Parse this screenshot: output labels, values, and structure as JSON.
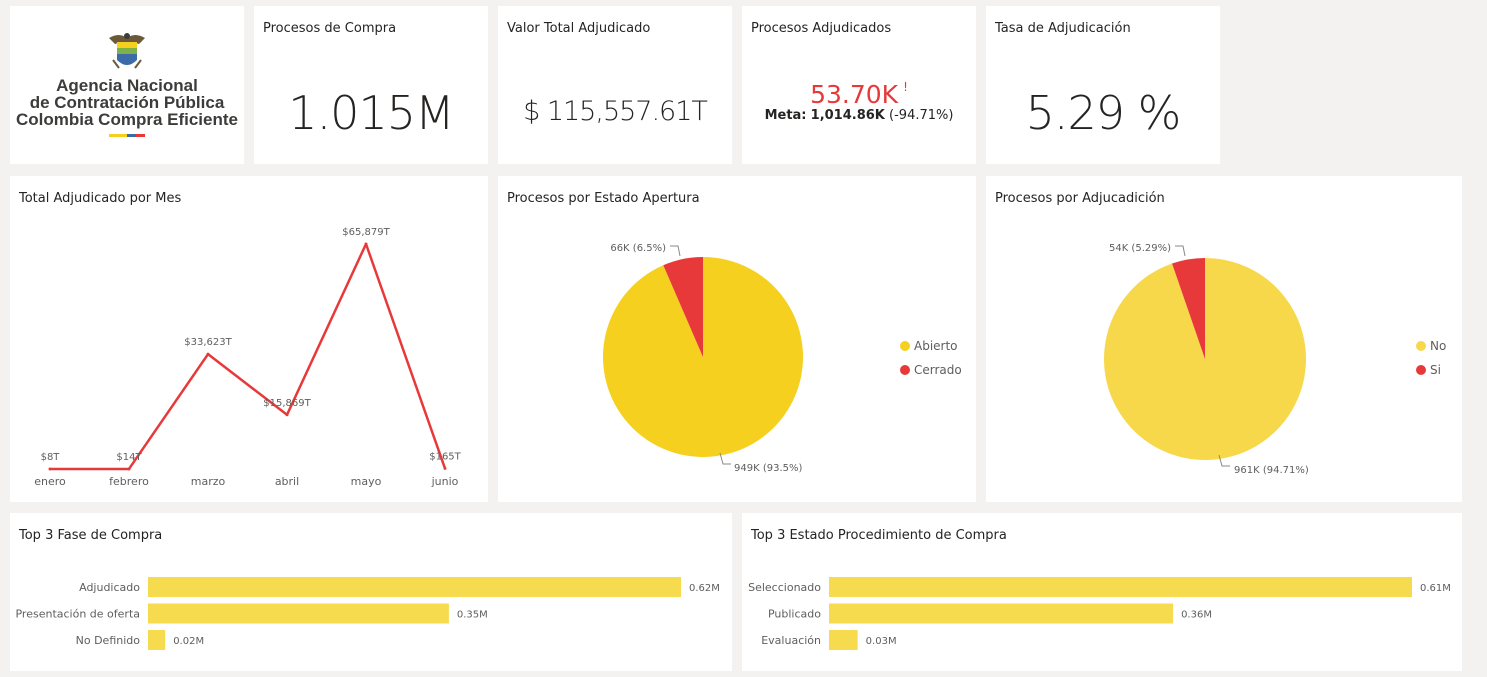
{
  "logo": {
    "line1": "Agencia Nacional",
    "line2": "de Contratación Pública",
    "line3": "Colombia Compra Eficiente"
  },
  "kpis": {
    "procesos_compra": {
      "title": "Procesos de Compra",
      "value": "1.015M"
    },
    "valor_total": {
      "title": "Valor Total Adjudicado",
      "value": "$ 115,557.61T"
    },
    "procesos_adjudicados": {
      "title": "Procesos Adjudicados",
      "value": "53.70K",
      "alert": "!",
      "meta_label": "Meta:",
      "meta_value": "1,014.86K",
      "meta_delta": "(-94.71%)"
    },
    "tasa": {
      "title": "Tasa de Adjudicación",
      "value": "5.29 %"
    }
  },
  "colors": {
    "red": "#e8393a",
    "yellow": "#f5d01f",
    "yellow_light": "#f7d84a",
    "bar": "#f7db4e"
  },
  "chart_data": [
    {
      "type": "line",
      "title": "Total Adjudicado por Mes",
      "categories": [
        "enero",
        "febrero",
        "marzo",
        "abril",
        "mayo",
        "junio"
      ],
      "values": [
        8,
        14,
        33623,
        15869,
        65879,
        165
      ],
      "labels": [
        "$8T",
        "$14T",
        "$33,623T",
        "$15,869T",
        "$65,879T",
        "$165T"
      ],
      "ylim": [
        0,
        65879
      ]
    },
    {
      "type": "pie",
      "title": "Procesos por Estado Apertura",
      "slices": [
        {
          "name": "Abierto",
          "value": 93.5,
          "label": "949K (93.5%)",
          "color": "#f5d01f"
        },
        {
          "name": "Cerrado",
          "value": 6.5,
          "label": "66K (6.5%)",
          "color": "#e8393a"
        }
      ]
    },
    {
      "type": "pie",
      "title": "Procesos por Adjucadición",
      "slices": [
        {
          "name": "No",
          "value": 94.71,
          "label": "961K (94.71%)",
          "color": "#f7d84a"
        },
        {
          "name": "Si",
          "value": 5.29,
          "label": "54K (5.29%)",
          "color": "#e8393a"
        }
      ]
    },
    {
      "type": "bar",
      "title": "Top 3 Fase de Compra",
      "categories": [
        "Adjudicado",
        "Presentación de oferta",
        "No Definido"
      ],
      "values": [
        0.62,
        0.35,
        0.02
      ],
      "labels": [
        "0.62M",
        "0.35M",
        "0.02M"
      ]
    },
    {
      "type": "bar",
      "title": "Top 3 Estado Procedimiento de Compra",
      "categories": [
        "Seleccionado",
        "Publicado",
        "Evaluación"
      ],
      "values": [
        0.61,
        0.36,
        0.03
      ],
      "labels": [
        "0.61M",
        "0.36M",
        "0.03M"
      ]
    }
  ]
}
